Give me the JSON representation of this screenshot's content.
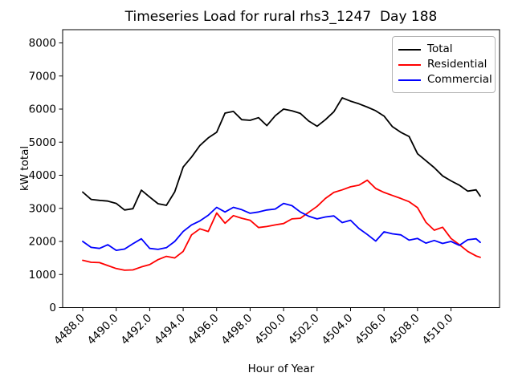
{
  "chart_data": {
    "type": "line",
    "title": "Timeseries Load for rural rhs3_1247  Day 188",
    "xlabel": "Hour of Year",
    "ylabel": "kW total",
    "xlim": [
      4486.8,
      4512.9
    ],
    "ylim": [
      0,
      8400
    ],
    "grid": false,
    "legend_position": "upper right",
    "x_ticks": [
      4488,
      4490,
      4492,
      4494,
      4496,
      4498,
      4500,
      4502,
      4504,
      4506,
      4508,
      4510
    ],
    "x_tick_labels": [
      "4488.0",
      "4490.0",
      "4492.0",
      "4494.0",
      "4496.0",
      "4498.0",
      "4500.0",
      "4502.0",
      "4504.0",
      "4506.0",
      "4508.0",
      "4510.0"
    ],
    "y_ticks": [
      0,
      1000,
      2000,
      3000,
      4000,
      5000,
      6000,
      7000,
      8000
    ],
    "y_tick_labels": [
      "0",
      "1000",
      "2000",
      "3000",
      "4000",
      "5000",
      "6000",
      "7000",
      "8000"
    ],
    "x": [
      4488.0,
      4488.5,
      4489.0,
      4489.5,
      4490.0,
      4490.5,
      4491.0,
      4491.5,
      4492.0,
      4492.5,
      4493.0,
      4493.5,
      4494.0,
      4494.5,
      4495.0,
      4495.5,
      4496.0,
      4496.5,
      4497.0,
      4497.5,
      4498.0,
      4498.5,
      4499.0,
      4499.5,
      4500.0,
      4500.5,
      4501.0,
      4501.5,
      4502.0,
      4502.5,
      4503.0,
      4503.5,
      4504.0,
      4504.5,
      4505.0,
      4505.5,
      4506.0,
      4506.5,
      4507.0,
      4507.5,
      4508.0,
      4508.5,
      4509.0,
      4509.5,
      4510.0,
      4510.5,
      4511.0,
      4511.5,
      4511.75
    ],
    "series": [
      {
        "name": "Total",
        "color": "#000000",
        "values": [
          3490,
          3270,
          3240,
          3220,
          3150,
          2950,
          2990,
          3550,
          3340,
          3140,
          3090,
          3500,
          4250,
          4550,
          4900,
          5130,
          5300,
          5880,
          5930,
          5680,
          5660,
          5740,
          5500,
          5800,
          6000,
          5950,
          5870,
          5640,
          5480,
          5680,
          5920,
          6340,
          6240,
          6160,
          6060,
          5950,
          5790,
          5470,
          5300,
          5170,
          4650,
          4440,
          4230,
          3980,
          3830,
          3700,
          3520,
          3560,
          3370
        ]
      },
      {
        "name": "Residential",
        "color": "#ff0000",
        "values": [
          1430,
          1370,
          1360,
          1270,
          1180,
          1130,
          1140,
          1230,
          1300,
          1450,
          1550,
          1500,
          1700,
          2200,
          2380,
          2300,
          2860,
          2550,
          2780,
          2700,
          2640,
          2420,
          2450,
          2500,
          2540,
          2680,
          2700,
          2880,
          3060,
          3300,
          3480,
          3560,
          3650,
          3700,
          3850,
          3600,
          3480,
          3390,
          3300,
          3200,
          3020,
          2580,
          2340,
          2430,
          2090,
          1900,
          1700,
          1560,
          1520
        ]
      },
      {
        "name": "Commercial",
        "color": "#0000ff",
        "values": [
          2000,
          1820,
          1790,
          1900,
          1730,
          1770,
          1930,
          2080,
          1790,
          1760,
          1810,
          2000,
          2300,
          2500,
          2620,
          2790,
          3030,
          2890,
          3030,
          2960,
          2850,
          2890,
          2950,
          2980,
          3150,
          3080,
          2890,
          2760,
          2680,
          2740,
          2770,
          2570,
          2640,
          2390,
          2210,
          2010,
          2290,
          2230,
          2200,
          2040,
          2090,
          1950,
          2030,
          1940,
          2000,
          1880,
          2050,
          2080,
          1970
        ]
      }
    ]
  }
}
